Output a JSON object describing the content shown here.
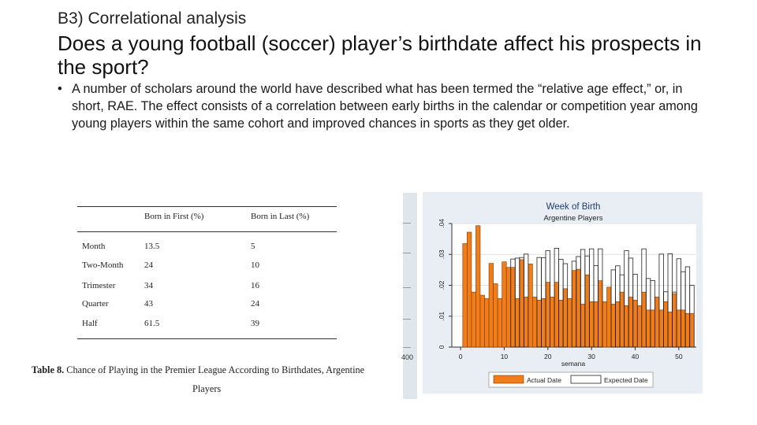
{
  "slide": {
    "subtitle": "B3) Correlational analysis",
    "title": "Does a young football (soccer) player’s birthdate affect his prospects in the sport?",
    "bullet_symbol": "•",
    "bullet": "A number of scholars around the world have described what has been termed the “relative age effect,” or, in short, RAE. The effect consists of a correlation between early births in the calendar or competition year among young players within the same cohort and improved chances in sports as they get older."
  },
  "table": {
    "headers": [
      "",
      "Born in First (%)",
      "Born in Last (%)"
    ],
    "rows": [
      {
        "label": "Month",
        "first": "13.5",
        "last": "5"
      },
      {
        "label": "Two-Month",
        "first": "24",
        "last": "10"
      },
      {
        "label": "Trimester",
        "first": "34",
        "last": "16"
      },
      {
        "label": "Quarter",
        "first": "43",
        "last": "24"
      },
      {
        "label": "Half",
        "first": "61.5",
        "last": "39"
      }
    ],
    "caption_bold": "Table 8.",
    "caption_text": " Chance of Playing in the Premier League According to Birthdates, Argentine",
    "caption_line2": "Players",
    "cropped_label": "400"
  },
  "chart_data": {
    "type": "bar",
    "title": "Week of Birth",
    "subtitle": "Argentine Players",
    "xlabel": "semana",
    "ylabel": "",
    "xlim": [
      -2,
      54
    ],
    "ylim": [
      0,
      0.04
    ],
    "xticks": [
      "0",
      "10",
      "20",
      "30",
      "40",
      "50"
    ],
    "yticks": [
      "0",
      ".01",
      ".02",
      ".03",
      ".04"
    ],
    "legend_position": "bottom",
    "grid": true,
    "colors": {
      "actual": "#f07c1a",
      "expected": "#ffffff",
      "background": "#e8eef3",
      "plot": "#ffffff",
      "title": "#1f3d6b"
    },
    "series": [
      {
        "name": "Actual Date",
        "weeks": [
          1,
          2,
          3,
          4,
          5,
          6,
          7,
          8,
          9,
          10,
          11,
          12,
          13,
          14,
          15,
          16,
          17,
          18,
          19,
          20,
          21,
          22,
          23,
          24,
          25,
          26,
          27,
          28,
          29,
          30,
          31,
          32,
          33,
          34,
          35,
          36,
          37,
          38,
          39,
          40,
          41,
          42,
          43,
          44,
          45,
          46,
          47,
          48,
          49,
          50,
          51,
          52,
          53
        ],
        "values": [
          0.0335,
          0.0372,
          0.0178,
          0.0393,
          0.0168,
          0.0157,
          0.0271,
          0.0205,
          0.0157,
          0.0276,
          0.0258,
          0.0258,
          0.0157,
          0.0283,
          0.0162,
          0.0269,
          0.0162,
          0.0152,
          0.0157,
          0.021,
          0.0162,
          0.021,
          0.0152,
          0.0189,
          0.0157,
          0.0248,
          0.0252,
          0.0139,
          0.0234,
          0.0147,
          0.0147,
          0.0215,
          0.0147,
          0.0194,
          0.0139,
          0.0147,
          0.0178,
          0.0134,
          0.0162,
          0.0152,
          0.0134,
          0.0178,
          0.012,
          0.012,
          0.0162,
          0.012,
          0.0147,
          0.0114,
          0.0173,
          0.012,
          0.012,
          0.0109,
          0.0109
        ]
      },
      {
        "name": "Expected Date",
        "weeks": [
          12,
          13,
          14,
          15,
          18,
          19,
          20,
          22,
          23,
          24,
          26,
          27,
          28,
          29,
          30,
          31,
          32,
          35,
          36,
          37,
          38,
          39,
          40,
          42,
          43,
          44,
          46,
          47,
          48,
          49,
          50,
          51,
          52,
          53
        ],
        "values": [
          0.0285,
          0.0288,
          0.029,
          0.0301,
          0.029,
          0.0289,
          0.0312,
          0.032,
          0.0284,
          0.027,
          0.0278,
          0.0293,
          0.0316,
          0.0295,
          0.0318,
          0.0264,
          0.0318,
          0.025,
          0.0263,
          0.0234,
          0.0312,
          0.0288,
          0.0236,
          0.0318,
          0.0222,
          0.0215,
          0.0301,
          0.0179,
          0.0302,
          0.0178,
          0.0286,
          0.0244,
          0.026,
          0.02
        ]
      }
    ]
  }
}
